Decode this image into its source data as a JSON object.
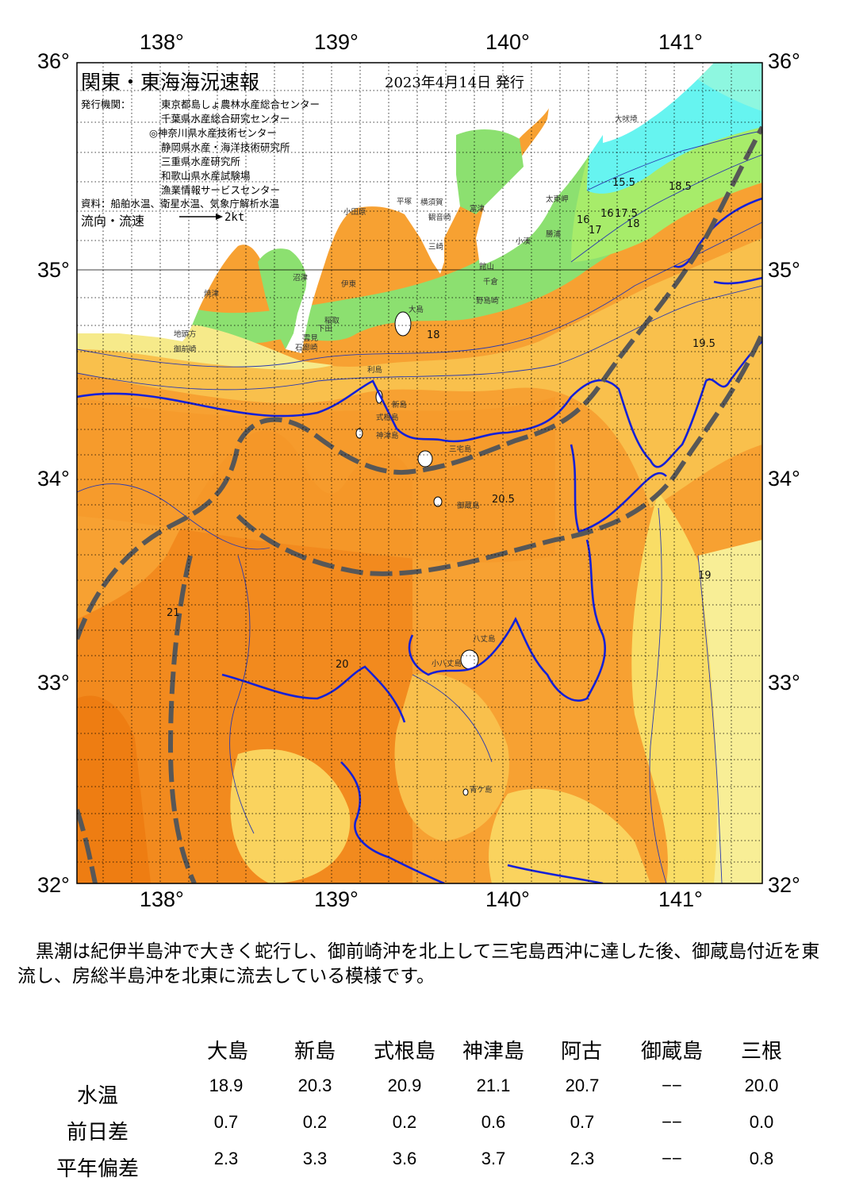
{
  "map": {
    "title": "関東・東海海況速報",
    "issue_date": "2023年4月14日 発行",
    "org_label": "発行機関：",
    "organizations": [
      "東京都島しょ農林水産総合センター",
      "千葉県水産総合研究センター",
      "◎神奈川県水産技術センター",
      "静岡県水産・海洋技術研究所",
      "三重県水産研究所",
      "和歌山県水産試験場",
      "漁業情報サービスセンター"
    ],
    "source": "資料：船舶水温、衛星水温、気象庁解析水温",
    "flow_label": "流向・流速",
    "flow_speed": "2kt",
    "lon_labels": [
      "138°",
      "139°",
      "140°",
      "141°"
    ],
    "lat_labels": [
      "36°",
      "35°",
      "34°",
      "33°",
      "32°"
    ],
    "place_names": [
      "大吠埼",
      "太東岬",
      "勝浦",
      "小湊",
      "富津",
      "横須賀",
      "観音崎",
      "平塚",
      "小田原",
      "三崎",
      "館山",
      "千倉",
      "野島崎",
      "大島",
      "利島",
      "新島",
      "式根島",
      "神津島",
      "三宅島",
      "御蔵島",
      "八丈島",
      "小八丈島",
      "青ケ島",
      "焼津",
      "地頭方",
      "御前崎",
      "沼津",
      "伊東",
      "稲取",
      "下田",
      "雲見",
      "石廊崎"
    ],
    "isotherm_labels": [
      "15.5",
      "16",
      "16",
      "17",
      "17.5",
      "18",
      "18",
      "18.5",
      "19",
      "19.5",
      "20",
      "20.5",
      "21"
    ],
    "colors": {
      "deep_orange": "#f28a1e",
      "orange": "#f7a132",
      "light_orange": "#f9bf52",
      "yellow": "#fbe06a",
      "pale_yellow": "#f8f1a0",
      "green": "#8ce070",
      "light_green": "#a7ec6a",
      "cyan": "#66f4f0",
      "aqua": "#8ef7e0",
      "kuroshio_axis": "#575757",
      "isotherm_20": "#1420d8"
    }
  },
  "summary": "黒潮は紀伊半島沖で大きく蛇行し、御前崎沖を北上して三宅島西沖に達した後、御蔵島付近を東流し、房総半島沖を北東に流去している模様です。",
  "table": {
    "headers": [
      "大島",
      "新島",
      "式根島",
      "神津島",
      "阿古",
      "御蔵島",
      "三根"
    ],
    "rows": [
      {
        "label": "水温",
        "values": [
          "18.9",
          "20.3",
          "20.9",
          "21.1",
          "20.7",
          "−−",
          "20.0"
        ]
      },
      {
        "label": "前日差",
        "values": [
          "0.7",
          "0.2",
          "0.2",
          "0.6",
          "0.7",
          "−−",
          "0.0"
        ]
      },
      {
        "label": "平年偏差",
        "values": [
          "2.3",
          "3.3",
          "3.6",
          "3.7",
          "2.3",
          "−−",
          "0.8"
        ]
      }
    ]
  }
}
